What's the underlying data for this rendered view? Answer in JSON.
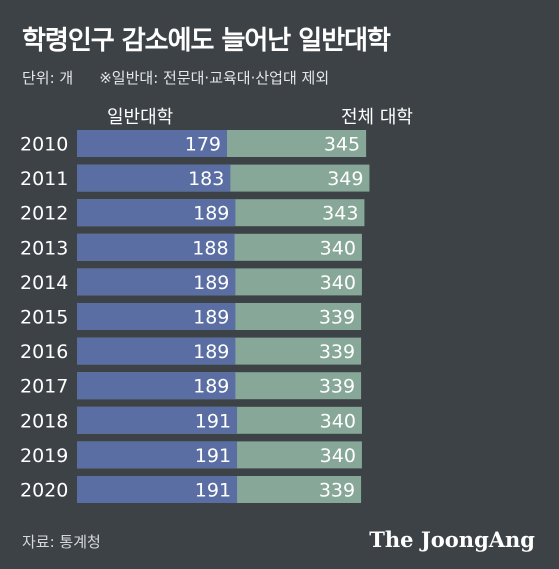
{
  "title": "학령인구 감소에도 늘어난 일반대학",
  "unit_note": "단위: 개",
  "exclusion_note": "※일반대: 전문대·교육대·산업대 제외",
  "source": "자료: 통계청",
  "brand": "The JoongAng",
  "colors": {
    "background": "#3d4247",
    "general_bar": "#5a6ea3",
    "total_bar": "#87a798"
  },
  "chart_data": {
    "type": "bar",
    "categories": [
      "2010",
      "2011",
      "2012",
      "2013",
      "2014",
      "2015",
      "2016",
      "2017",
      "2018",
      "2019",
      "2020"
    ],
    "series": [
      {
        "name": "일반대학",
        "values": [
          179,
          183,
          189,
          188,
          189,
          189,
          189,
          189,
          191,
          191,
          191
        ]
      },
      {
        "name": "전체 대학",
        "values": [
          345,
          349,
          343,
          340,
          340,
          339,
          339,
          339,
          340,
          340,
          339
        ]
      }
    ],
    "stacked": true,
    "orientation": "horizontal",
    "legend": "top"
  }
}
